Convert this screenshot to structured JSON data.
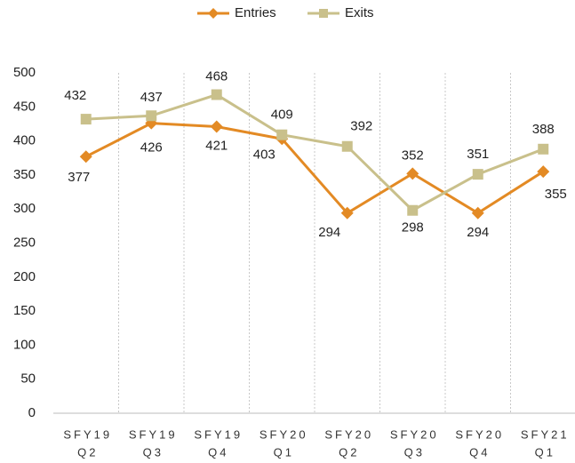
{
  "chart_data": {
    "type": "line",
    "categories": [
      [
        "SFY19",
        "Q2"
      ],
      [
        "SFY19",
        "Q3"
      ],
      [
        "SFY19",
        "Q4"
      ],
      [
        "SFY20",
        "Q1"
      ],
      [
        "SFY20",
        "Q2"
      ],
      [
        "SFY20",
        "Q3"
      ],
      [
        "SFY20",
        "Q4"
      ],
      [
        "SFY21",
        "Q1"
      ]
    ],
    "series": [
      {
        "name": "Entries",
        "color": "#e38a24",
        "marker": "diamond",
        "values": [
          377,
          426,
          421,
          403,
          294,
          352,
          294,
          355
        ]
      },
      {
        "name": "Exits",
        "color": "#c9c08b",
        "marker": "square",
        "values": [
          432,
          437,
          468,
          409,
          392,
          298,
          351,
          388
        ]
      }
    ],
    "ylim": [
      0,
      500
    ],
    "yticks": [
      0,
      50,
      100,
      150,
      200,
      250,
      300,
      350,
      400,
      450,
      500
    ],
    "legend": "top"
  }
}
